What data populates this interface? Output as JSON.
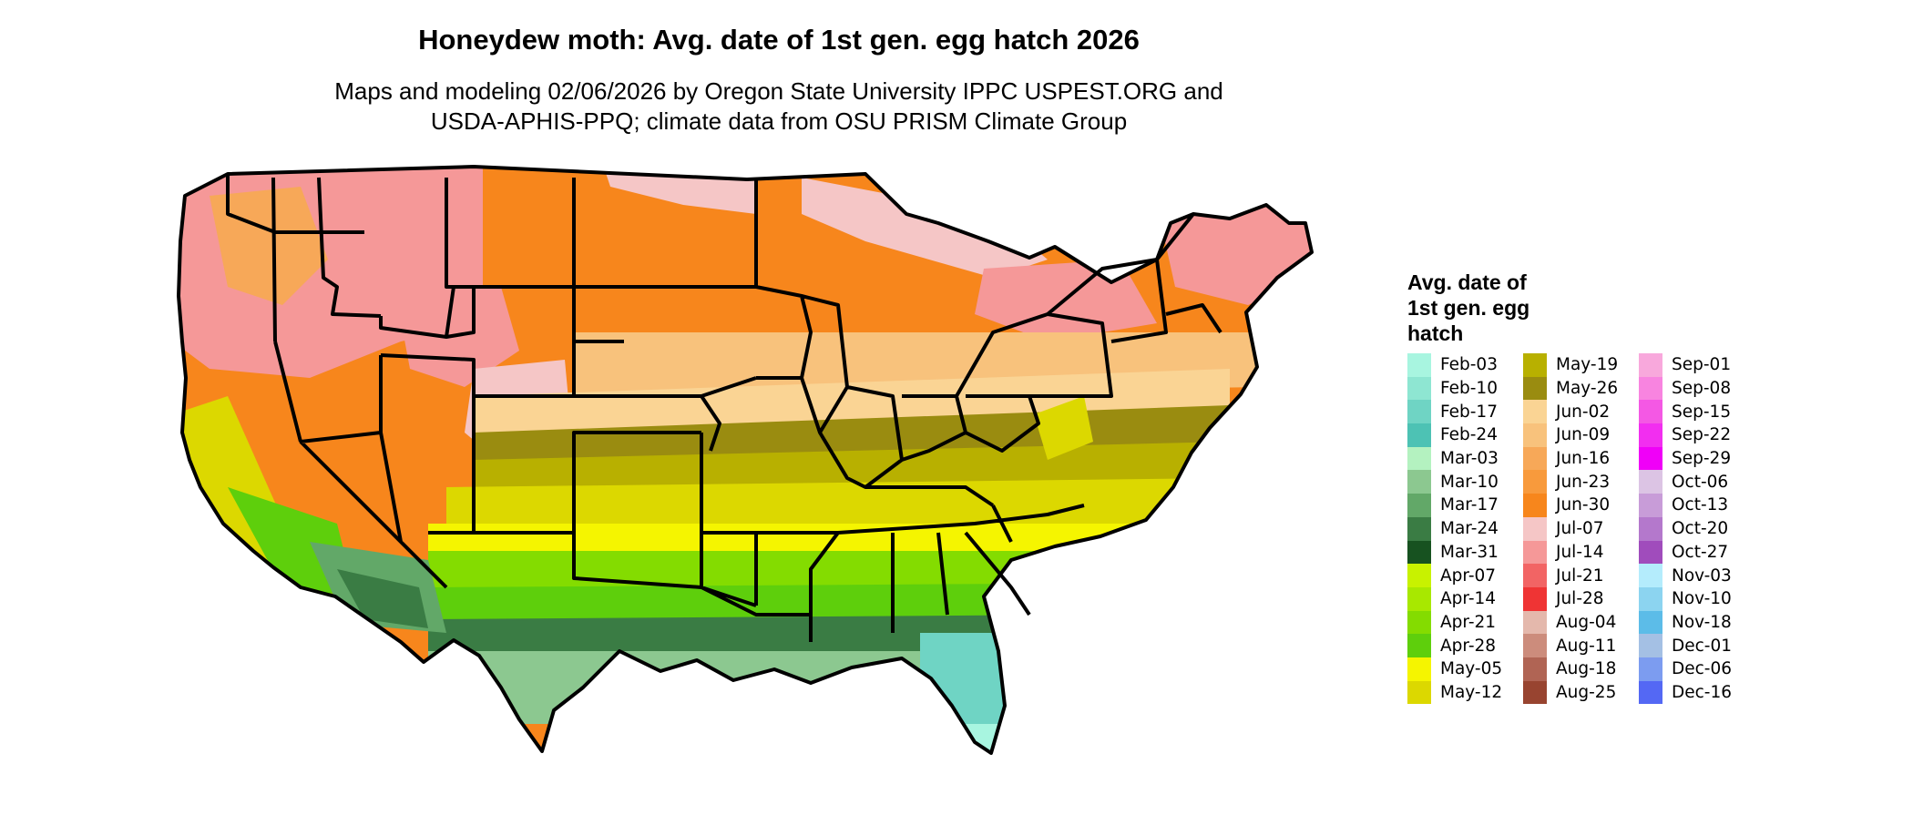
{
  "title": "Honeydew moth: Avg. date of 1st gen. egg hatch 2026",
  "subtitle_line1": "Maps and modeling 02/06/2026 by Oregon State University IPPC USPEST.ORG and",
  "subtitle_line2": "USDA-APHIS-PPQ; climate data from OSU PRISM Climate Group",
  "legend": {
    "title_lines": [
      "Avg. date of",
      "1st gen. egg",
      "hatch"
    ],
    "columns": [
      [
        {
          "label": "Feb-03",
          "color": "#a8f5e0"
        },
        {
          "label": "Feb-10",
          "color": "#8ee6d2"
        },
        {
          "label": "Feb-17",
          "color": "#6fd4c4"
        },
        {
          "label": "Feb-24",
          "color": "#4dc2b4"
        },
        {
          "label": "Mar-03",
          "color": "#b4f2c0"
        },
        {
          "label": "Mar-10",
          "color": "#8cc890"
        },
        {
          "label": "Mar-17",
          "color": "#62a868"
        },
        {
          "label": "Mar-24",
          "color": "#3a7c44"
        },
        {
          "label": "Mar-31",
          "color": "#175220"
        },
        {
          "label": "Apr-07",
          "color": "#c8f200"
        },
        {
          "label": "Apr-14",
          "color": "#a8e800"
        },
        {
          "label": "Apr-21",
          "color": "#84dc00"
        },
        {
          "label": "Apr-28",
          "color": "#5ecf0c"
        },
        {
          "label": "May-05",
          "color": "#f5f500"
        },
        {
          "label": "May-12",
          "color": "#dcd800"
        }
      ],
      [
        {
          "label": "May-19",
          "color": "#b8b000"
        },
        {
          "label": "May-26",
          "color": "#9a8c10"
        },
        {
          "label": "Jun-02",
          "color": "#fad494"
        },
        {
          "label": "Jun-09",
          "color": "#f8c27c"
        },
        {
          "label": "Jun-16",
          "color": "#f7a858"
        },
        {
          "label": "Jun-23",
          "color": "#f89a3c"
        },
        {
          "label": "Jun-30",
          "color": "#f7861c"
        },
        {
          "label": "Jul-07",
          "color": "#f5c6c6"
        },
        {
          "label": "Jul-14",
          "color": "#f59898"
        },
        {
          "label": "Jul-21",
          "color": "#f26464"
        },
        {
          "label": "Jul-28",
          "color": "#ef3434"
        },
        {
          "label": "Aug-04",
          "color": "#e4b8ac"
        },
        {
          "label": "Aug-11",
          "color": "#cc8c7c"
        },
        {
          "label": "Aug-18",
          "color": "#b06454"
        },
        {
          "label": "Aug-25",
          "color": "#984430"
        }
      ],
      [
        {
          "label": "Sep-01",
          "color": "#f8a8dc"
        },
        {
          "label": "Sep-08",
          "color": "#f884e0"
        },
        {
          "label": "Sep-15",
          "color": "#f458e4"
        },
        {
          "label": "Sep-22",
          "color": "#f22ef0"
        },
        {
          "label": "Sep-29",
          "color": "#f000f8"
        },
        {
          "label": "Oct-06",
          "color": "#dcc4e4"
        },
        {
          "label": "Oct-13",
          "color": "#c89cd8"
        },
        {
          "label": "Oct-20",
          "color": "#b478cc"
        },
        {
          "label": "Oct-27",
          "color": "#a04cbc"
        },
        {
          "label": "Nov-03",
          "color": "#b4ecfc"
        },
        {
          "label": "Nov-10",
          "color": "#8cd4f0"
        },
        {
          "label": "Nov-18",
          "color": "#5cbce8"
        },
        {
          "label": "Dec-01",
          "color": "#a4c0e4"
        },
        {
          "label": "Dec-06",
          "color": "#7c9cf0"
        },
        {
          "label": "Dec-16",
          "color": "#5468f4"
        }
      ]
    ]
  }
}
